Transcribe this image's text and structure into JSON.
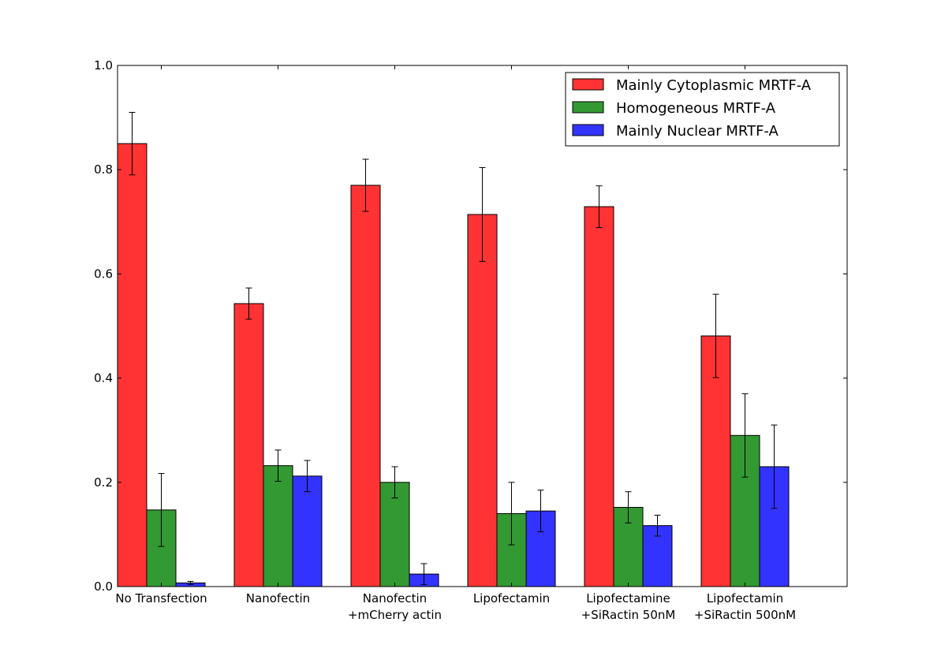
{
  "chart_data": {
    "type": "bar",
    "title": "",
    "xlabel": "",
    "ylabel": "",
    "ylim": [
      0,
      1.0
    ],
    "yticks": [
      "0.0",
      "0.2",
      "0.4",
      "0.6",
      "0.8",
      "1.0"
    ],
    "categories": [
      [
        "No Transfection"
      ],
      [
        "Nanofectin"
      ],
      [
        "Nanofectin",
        "+mCherry actin"
      ],
      [
        "Lipofectamin"
      ],
      [
        "Lipofectamine",
        "+SiRactin 50nM"
      ],
      [
        "Lipofectamin",
        "+SiRactin 500nM"
      ]
    ],
    "series": [
      {
        "name": "Mainly Cytoplasmic MRTF-A",
        "color": "#ff3333",
        "values": [
          0.85,
          0.543,
          0.77,
          0.714,
          0.729,
          0.481
        ],
        "errors": [
          0.06,
          0.03,
          0.05,
          0.09,
          0.04,
          0.08
        ]
      },
      {
        "name": "Homogeneous MRTF-A",
        "color": "#339933",
        "values": [
          0.147,
          0.232,
          0.2,
          0.14,
          0.152,
          0.29
        ],
        "errors": [
          0.07,
          0.03,
          0.03,
          0.06,
          0.03,
          0.08
        ]
      },
      {
        "name": "Mainly Nuclear MRTF-A",
        "color": "#3333ff",
        "values": [
          0.007,
          0.212,
          0.024,
          0.145,
          0.117,
          0.23
        ],
        "errors": [
          0.003,
          0.03,
          0.02,
          0.04,
          0.02,
          0.08
        ]
      }
    ],
    "legend_position": "top-right",
    "grid": false
  }
}
